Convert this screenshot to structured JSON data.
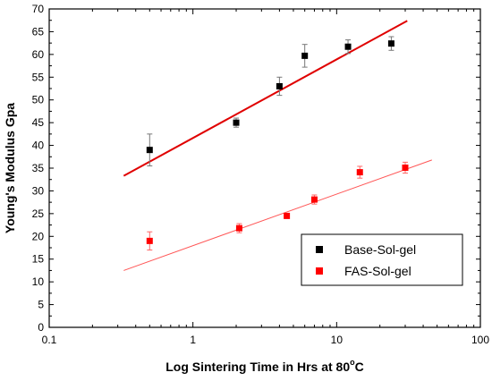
{
  "chart_data": {
    "type": "scatter",
    "xscale": "log",
    "xlim": [
      0.1,
      100
    ],
    "ylim": [
      0,
      70
    ],
    "xlabel_main": "Log Sintering Time in Hrs at 80",
    "xlabel_degree": "o",
    "xlabel_unit": "C",
    "ylabel": "Young's Modulus Gpa",
    "x_ticks": [
      0.1,
      1,
      10,
      100
    ],
    "x_tick_labels": [
      "0.1",
      "1",
      "10",
      "100"
    ],
    "y_ticks": [
      0,
      5,
      10,
      15,
      20,
      25,
      30,
      35,
      40,
      45,
      50,
      55,
      60,
      65,
      70
    ],
    "y_tick_labels": [
      "0",
      "5",
      "10",
      "15",
      "20",
      "25",
      "30",
      "35",
      "40",
      "45",
      "50",
      "55",
      "60",
      "65",
      "70"
    ],
    "grid": false,
    "legend_position": "bottom-right",
    "series": [
      {
        "name": "Base-Sol-gel",
        "color": "#000000",
        "marker": "square",
        "points": [
          {
            "x": 0.5,
            "y": 39,
            "err": 3.5
          },
          {
            "x": 2,
            "y": 45,
            "err": 1
          },
          {
            "x": 4,
            "y": 53,
            "err": 2
          },
          {
            "x": 6,
            "y": 59.7,
            "err": 2.5
          },
          {
            "x": 12,
            "y": 61.7,
            "err": 1.5
          },
          {
            "x": 24,
            "y": 62.4,
            "err": 1.5
          }
        ],
        "fit_line": {
          "color": "#e00000",
          "width": 2,
          "x": [
            0.33,
            31
          ],
          "y": [
            33.3,
            67.4
          ]
        }
      },
      {
        "name": "FAS-Sol-gel",
        "color": "#ff0000",
        "marker": "square",
        "points": [
          {
            "x": 0.5,
            "y": 19,
            "err": 2
          },
          {
            "x": 2.1,
            "y": 21.8,
            "err": 1
          },
          {
            "x": 4.5,
            "y": 24.5,
            "err": 0.5
          },
          {
            "x": 7,
            "y": 28.1,
            "err": 1
          },
          {
            "x": 14.5,
            "y": 34.1,
            "err": 1.3
          },
          {
            "x": 30,
            "y": 35.1,
            "err": 1.2
          }
        ],
        "fit_line": {
          "color": "#ff5555",
          "width": 1,
          "x": [
            0.33,
            46
          ],
          "y": [
            12.5,
            36.8
          ]
        }
      }
    ]
  }
}
